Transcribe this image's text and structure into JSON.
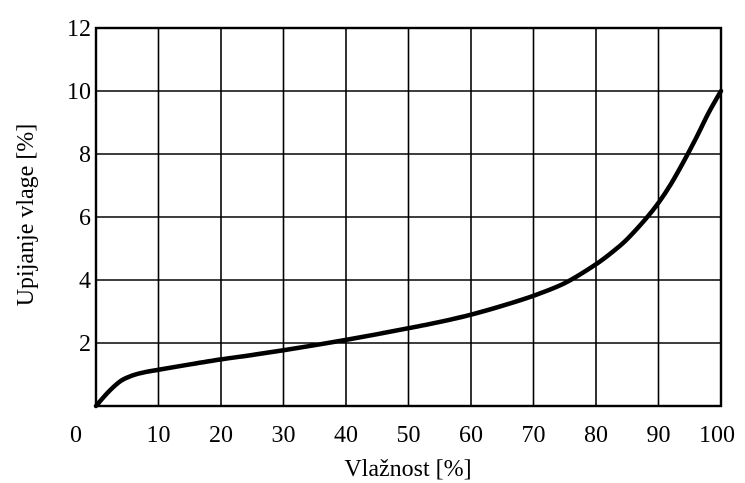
{
  "chart_data": {
    "type": "line",
    "title": "",
    "xlabel": "Vlažnost [%]",
    "ylabel": "Upijanje vlage [%]",
    "xlim": [
      0,
      100
    ],
    "ylim": [
      0,
      12
    ],
    "grid": true,
    "x_ticks": [
      "0",
      "10",
      "20",
      "30",
      "40",
      "50",
      "60",
      "70",
      "80",
      "90",
      "100"
    ],
    "y_ticks": [
      "",
      "2",
      "4",
      "6",
      "8",
      "10",
      "12"
    ],
    "series": [
      {
        "color": "#000000",
        "points": [
          [
            0,
            0
          ],
          [
            2,
            0.45
          ],
          [
            4,
            0.8
          ],
          [
            6,
            0.98
          ],
          [
            8,
            1.08
          ],
          [
            10,
            1.15
          ],
          [
            15,
            1.32
          ],
          [
            20,
            1.48
          ],
          [
            25,
            1.62
          ],
          [
            30,
            1.77
          ],
          [
            35,
            1.93
          ],
          [
            40,
            2.1
          ],
          [
            45,
            2.28
          ],
          [
            50,
            2.47
          ],
          [
            55,
            2.67
          ],
          [
            60,
            2.9
          ],
          [
            65,
            3.18
          ],
          [
            70,
            3.5
          ],
          [
            75,
            3.9
          ],
          [
            80,
            4.5
          ],
          [
            83,
            4.95
          ],
          [
            85,
            5.3
          ],
          [
            88,
            5.95
          ],
          [
            90,
            6.45
          ],
          [
            92,
            7.05
          ],
          [
            94,
            7.75
          ],
          [
            96,
            8.5
          ],
          [
            98,
            9.3
          ],
          [
            100,
            10.0
          ]
        ]
      }
    ]
  }
}
